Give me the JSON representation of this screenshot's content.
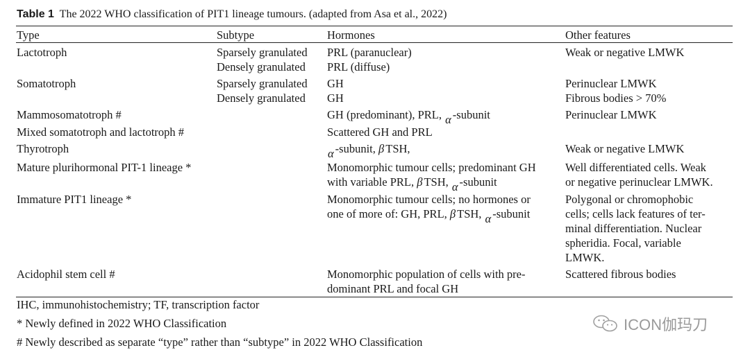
{
  "caption": {
    "label": "Table 1",
    "text": "The 2022 WHO classification of PIT1 lineage tumours. (adapted from Asa et al., 2022)"
  },
  "headers": {
    "type": "Type",
    "subtype": "Subtype",
    "hormones": "Hormones",
    "other": "Other features"
  },
  "rows": [
    {
      "type": "Lactotroph",
      "subtypes": [
        "Sparsely granulated",
        "Densely granulated"
      ],
      "hormones": [
        "PRL (paranuclear)",
        "PRL (diffuse)"
      ],
      "other": [
        "Weak or negative LMWK"
      ]
    },
    {
      "type": "Somatotroph",
      "subtypes": [
        "Sparsely granulated",
        "Densely granulated"
      ],
      "hormones": [
        "GH",
        "GH"
      ],
      "other": [
        "Perinuclear LMWK",
        "Fibrous bodies > 70%"
      ]
    },
    {
      "type": "Mammosomatotroph #",
      "hormones_a": "GH (predominant), PRL,",
      "hormones_b": "-subunit",
      "other": [
        "Perinuclear LMWK"
      ]
    },
    {
      "type": "Mixed somatotroph and lactotroph #",
      "hormones": [
        "Scattered GH and PRL"
      ]
    },
    {
      "type": "Thyrotroph",
      "hormones_a": "-subunit,",
      "hormones_b": "TSH,",
      "other": [
        "Weak or negative LMWK"
      ]
    },
    {
      "type": "Mature plurihormonal PIT-1 lineage *",
      "hormones_l1": "Monomorphic tumour cells; predominant GH",
      "hormones_l2a": "with variable PRL,",
      "hormones_l2b": "TSH,",
      "hormones_l2c": "-subunit",
      "other": [
        "Well differentiated cells. Weak",
        "or negative perinuclear LMWK."
      ]
    },
    {
      "type": "Immature PIT1 lineage *",
      "hormones_l1": "Monomorphic tumour cells; no hormones or",
      "hormones_l2a": "one of more of: GH, PRL,",
      "hormones_l2b": "TSH,",
      "hormones_l2c": "-subunit",
      "other": [
        "Polygonal or chromophobic",
        "cells; cells lack features of ter-",
        "minal differentiation. Nuclear",
        "spheridia. Focal, variable",
        "LMWK."
      ]
    },
    {
      "type": "Acidophil stem cell #",
      "hormones": [
        "Monomorphic population of cells with pre-",
        "dominant PRL and focal GH"
      ],
      "other": [
        "Scattered fibrous bodies"
      ]
    }
  ],
  "greek": {
    "alpha": "α",
    "beta": "β"
  },
  "footnotes": [
    "IHC, immunohistochemistry; TF, transcription factor",
    "* Newly defined in 2022 WHO Classification",
    "# Newly described as separate “type” rather than “subtype” in 2022 WHO Classification"
  ],
  "watermark": {
    "text": "ICON伽玛刀",
    "icon": "wechat-icon"
  }
}
